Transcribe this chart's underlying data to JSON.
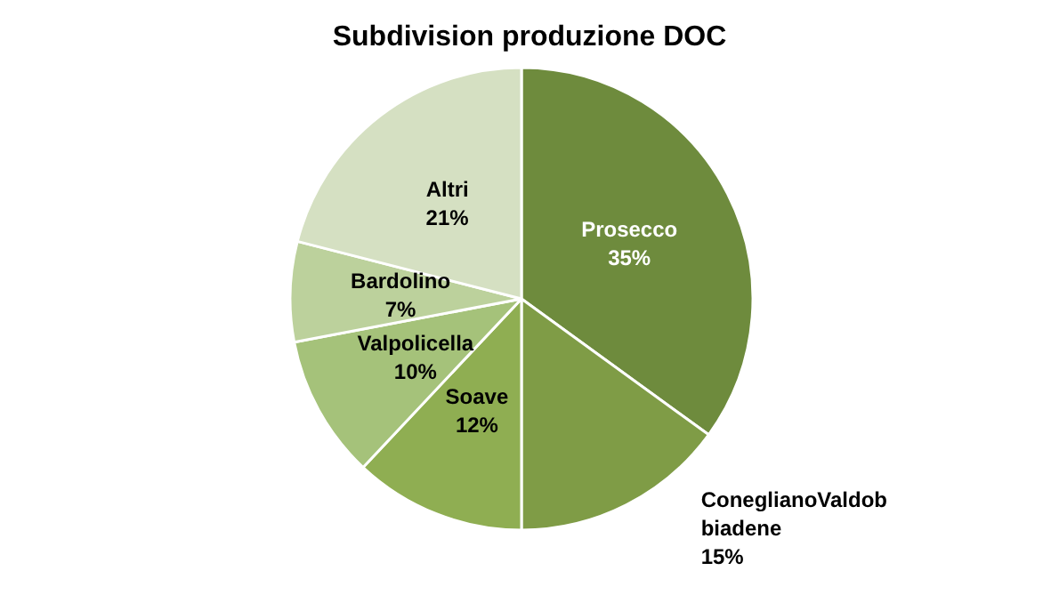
{
  "chart_data": {
    "type": "pie",
    "title": "Subdivision produzione DOC",
    "categories": [
      "Prosecco",
      "ConeglianoValdobbiadene",
      "Soave",
      "Valpolicella",
      "Bardolino",
      "Altri"
    ],
    "values": [
      35,
      15,
      12,
      10,
      7,
      21
    ],
    "value_labels": [
      "35%",
      "15%",
      "12%",
      "10%",
      "7%",
      "21%"
    ],
    "colors": [
      "#6e8b3d",
      "#7f9c46",
      "#8fae52",
      "#a5c27a",
      "#bcd19c",
      "#d5e0c2"
    ],
    "legend": false
  }
}
